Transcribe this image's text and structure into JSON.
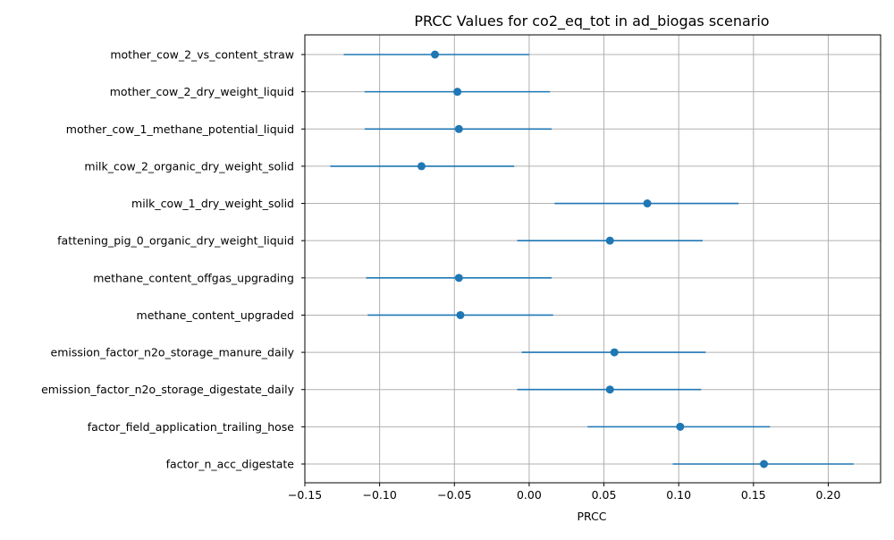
{
  "chart_data": {
    "type": "errorbar",
    "title": "PRCC Values for co2_eq_tot in ad_biogas scenario",
    "xlabel": "PRCC",
    "ylabel": "",
    "xlim": [
      -0.15,
      0.235
    ],
    "xticks": [
      -0.15,
      -0.1,
      -0.05,
      0.0,
      0.05,
      0.1,
      0.15,
      0.2
    ],
    "xtick_labels": [
      "−0.15",
      "−0.10",
      "−0.05",
      "0.00",
      "0.05",
      "0.10",
      "0.15",
      "0.20"
    ],
    "grid": true,
    "color": "#1f77b4",
    "categories": [
      "mother_cow_2_vs_content_straw",
      "mother_cow_2_dry_weight_liquid",
      "mother_cow_1_methane_potential_liquid",
      "milk_cow_2_organic_dry_weight_solid",
      "milk_cow_1_dry_weight_solid",
      "fattening_pig_0_organic_dry_weight_liquid",
      "methane_content_offgas_upgrading",
      "methane_content_upgraded",
      "emission_factor_n2o_storage_manure_daily",
      "emission_factor_n2o_storage_digestate_daily",
      "factor_field_application_trailing_hose",
      "factor_n_acc_digestate"
    ],
    "values": [
      -0.063,
      -0.048,
      -0.047,
      -0.072,
      0.079,
      0.054,
      -0.047,
      -0.046,
      0.057,
      0.054,
      0.101,
      0.157
    ],
    "lower": [
      -0.124,
      -0.11,
      -0.11,
      -0.133,
      0.017,
      -0.008,
      -0.109,
      -0.108,
      -0.005,
      -0.008,
      0.039,
      0.096
    ],
    "upper": [
      0.0,
      0.014,
      0.015,
      -0.01,
      0.14,
      0.116,
      0.015,
      0.016,
      0.118,
      0.115,
      0.161,
      0.217
    ]
  }
}
